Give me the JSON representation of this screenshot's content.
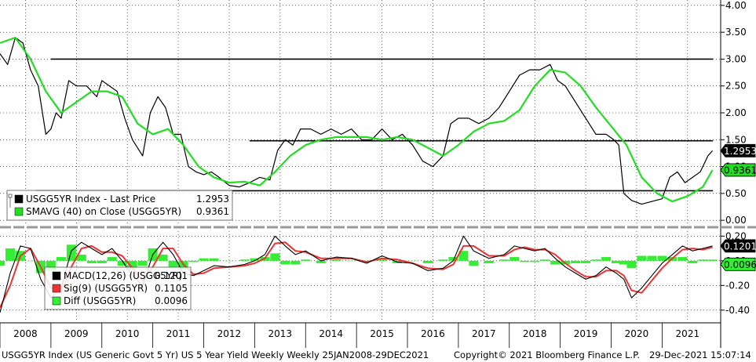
{
  "colors": {
    "price": "#000000",
    "sma": "#22dd22",
    "macd": "#000000",
    "signal": "#ee3333",
    "diff": "#33ee33",
    "hline": "#000000",
    "grid": "#000000",
    "separator": "#999999"
  },
  "footer": {
    "left": "USGG5YR Index (US Generic Govt 5 Yr) US 5 Year Yield Weekly  Weekly 25JAN2008-29DEC2021",
    "center": "Copyright© 2021 Bloomberg Finance L.P.",
    "right": "29-Dec-2021 15:07:14"
  },
  "chart_data": [
    {
      "type": "line",
      "title": "",
      "x_labels": [
        "2008",
        "2009",
        "2010",
        "2011",
        "2012",
        "2013",
        "2014",
        "2015",
        "2016",
        "2017",
        "2018",
        "2019",
        "2020",
        "2021"
      ],
      "y_ticks": [
        "4.00",
        "3.50",
        "3.00",
        "2.50",
        "2.00",
        "1.50",
        "1.00",
        "0.50",
        "0.00"
      ],
      "ylim": [
        -0.1,
        4.1
      ],
      "grid": "dotted",
      "legend_position": "bottom-left",
      "legend": [
        {
          "icon": "black",
          "label": "USGG5YR Index - Last Price",
          "value": "1.2953"
        },
        {
          "icon": "green",
          "label": "SMAVG (40)  on Close (USGG5YR)",
          "value": "0.9361"
        }
      ],
      "last_value_tags": [
        {
          "series": "price",
          "value": "1.2953"
        },
        {
          "series": "sma",
          "value": "0.9361"
        }
      ],
      "horizontal_lines": [
        {
          "y": 3.0,
          "from": 2009.0,
          "to": 2022.0
        },
        {
          "y": 1.48,
          "from": 2012.9,
          "to": 2022.0
        },
        {
          "y": 0.55,
          "from": 2008.7,
          "to": 2022.0
        }
      ],
      "series": [
        {
          "name": "USGG5YR Index - Last Price",
          "x": [
            2008.0,
            2008.15,
            2008.3,
            2008.45,
            2008.6,
            2008.75,
            2008.9,
            2009.0,
            2009.1,
            2009.2,
            2009.35,
            2009.5,
            2009.7,
            2009.9,
            2010.0,
            2010.15,
            2010.3,
            2010.45,
            2010.6,
            2010.8,
            2010.95,
            2011.1,
            2011.25,
            2011.4,
            2011.55,
            2011.7,
            2011.85,
            2012.0,
            2012.15,
            2012.3,
            2012.5,
            2012.7,
            2012.9,
            2013.1,
            2013.3,
            2013.45,
            2013.6,
            2013.75,
            2013.9,
            2014.1,
            2014.3,
            2014.5,
            2014.7,
            2014.9,
            2015.1,
            2015.3,
            2015.5,
            2015.7,
            2015.9,
            2016.1,
            2016.3,
            2016.5,
            2016.7,
            2016.85,
            2017.0,
            2017.2,
            2017.4,
            2017.6,
            2017.8,
            2018.0,
            2018.2,
            2018.4,
            2018.6,
            2018.8,
            2018.95,
            2019.1,
            2019.3,
            2019.5,
            2019.7,
            2019.9,
            2020.05,
            2020.15,
            2020.25,
            2020.4,
            2020.6,
            2020.8,
            2021.0,
            2021.15,
            2021.3,
            2021.45,
            2021.6,
            2021.75,
            2021.9,
            2021.99
          ],
          "values": [
            3.1,
            2.9,
            3.4,
            3.3,
            2.8,
            2.5,
            1.6,
            1.7,
            2.0,
            1.9,
            2.6,
            2.5,
            2.5,
            2.3,
            2.6,
            2.5,
            2.4,
            1.9,
            1.5,
            1.2,
            2.0,
            2.3,
            2.1,
            1.6,
            1.6,
            1.0,
            0.9,
            0.85,
            0.9,
            0.8,
            0.65,
            0.62,
            0.7,
            0.8,
            0.75,
            1.3,
            1.5,
            1.4,
            1.7,
            1.7,
            1.6,
            1.7,
            1.6,
            1.7,
            1.5,
            1.5,
            1.7,
            1.5,
            1.6,
            1.4,
            1.1,
            1.0,
            1.2,
            1.8,
            1.9,
            1.9,
            1.8,
            1.9,
            2.1,
            2.4,
            2.7,
            2.8,
            2.8,
            2.9,
            2.6,
            2.5,
            2.2,
            1.9,
            1.6,
            1.6,
            1.5,
            1.4,
            0.5,
            0.37,
            0.3,
            0.35,
            0.4,
            0.8,
            0.9,
            0.7,
            0.8,
            0.9,
            1.2,
            1.2953
          ]
        },
        {
          "name": "SMAVG (40)  on Close (USGG5YR)",
          "x": [
            2008.0,
            2008.3,
            2008.6,
            2008.9,
            2009.2,
            2009.5,
            2009.8,
            2010.1,
            2010.4,
            2010.7,
            2011.0,
            2011.3,
            2011.6,
            2011.9,
            2012.2,
            2012.5,
            2012.8,
            2013.1,
            2013.4,
            2013.7,
            2014.0,
            2014.3,
            2014.6,
            2014.9,
            2015.2,
            2015.5,
            2015.8,
            2016.1,
            2016.4,
            2016.7,
            2017.0,
            2017.3,
            2017.6,
            2017.9,
            2018.2,
            2018.5,
            2018.8,
            2019.1,
            2019.4,
            2019.7,
            2020.0,
            2020.3,
            2020.6,
            2020.9,
            2021.2,
            2021.5,
            2021.8,
            2021.99
          ],
          "values": [
            3.3,
            3.4,
            3.0,
            2.4,
            2.0,
            2.2,
            2.4,
            2.4,
            2.3,
            1.8,
            1.6,
            1.7,
            1.4,
            1.0,
            0.8,
            0.7,
            0.72,
            0.65,
            0.9,
            1.2,
            1.4,
            1.5,
            1.55,
            1.55,
            1.55,
            1.5,
            1.55,
            1.5,
            1.35,
            1.2,
            1.4,
            1.65,
            1.8,
            1.85,
            2.05,
            2.5,
            2.8,
            2.75,
            2.5,
            2.1,
            1.75,
            1.4,
            0.8,
            0.5,
            0.35,
            0.45,
            0.62,
            0.9361
          ]
        }
      ]
    },
    {
      "type": "line",
      "title": "",
      "y_ticks": [
        "0.20",
        "0.00",
        "-0.20",
        "-0.40"
      ],
      "ylim": [
        -0.49,
        0.24
      ],
      "grid": "dotted",
      "legend_position": "bottom-left",
      "legend": [
        {
          "icon": "black",
          "label": "MACD(12,26)  (USGG5YR)",
          "value": "0.1201"
        },
        {
          "icon": "red",
          "label": "Sig(9)  (USGG5YR)",
          "value": "0.1105"
        },
        {
          "icon": "green",
          "label": "Diff  (USGG5YR)",
          "value": "0.0096"
        }
      ],
      "last_value_tags": [
        {
          "series": "macd",
          "value": "0.1201"
        },
        {
          "series": "diff",
          "value": "0.0096"
        }
      ],
      "series": [
        {
          "name": "MACD(12,26)  (USGG5YR)",
          "x": [
            2008.0,
            2008.2,
            2008.4,
            2008.6,
            2008.8,
            2009.0,
            2009.2,
            2009.4,
            2009.6,
            2009.8,
            2010.0,
            2010.2,
            2010.4,
            2010.6,
            2010.8,
            2011.0,
            2011.2,
            2011.4,
            2011.6,
            2011.8,
            2012.0,
            2012.2,
            2012.5,
            2012.8,
            2013.0,
            2013.2,
            2013.4,
            2013.6,
            2013.8,
            2014.0,
            2014.3,
            2014.6,
            2014.9,
            2015.2,
            2015.5,
            2015.8,
            2016.1,
            2016.4,
            2016.7,
            2016.9,
            2017.1,
            2017.3,
            2017.6,
            2017.9,
            2018.1,
            2018.3,
            2018.5,
            2018.7,
            2018.9,
            2019.1,
            2019.3,
            2019.5,
            2019.7,
            2019.9,
            2020.1,
            2020.25,
            2020.4,
            2020.6,
            2020.8,
            2021.0,
            2021.2,
            2021.4,
            2021.6,
            2021.8,
            2021.99
          ],
          "values": [
            -0.42,
            -0.1,
            0.12,
            0.1,
            -0.15,
            -0.3,
            -0.22,
            0.08,
            0.15,
            0.1,
            0.05,
            0.1,
            0.0,
            -0.12,
            -0.2,
            0.05,
            0.15,
            0.05,
            -0.1,
            -0.12,
            -0.08,
            -0.04,
            -0.05,
            -0.03,
            0.0,
            0.05,
            0.2,
            0.12,
            0.05,
            0.08,
            0.0,
            0.03,
            0.02,
            -0.02,
            0.04,
            -0.01,
            -0.02,
            -0.08,
            -0.06,
            0.0,
            0.2,
            0.08,
            0.02,
            0.05,
            0.12,
            0.1,
            0.08,
            0.1,
            0.02,
            -0.05,
            -0.1,
            -0.15,
            -0.12,
            -0.05,
            -0.1,
            -0.15,
            -0.3,
            -0.22,
            -0.12,
            -0.02,
            0.05,
            0.12,
            0.08,
            0.1,
            0.1201
          ]
        },
        {
          "name": "Sig(9)  (USGG5YR)",
          "x": [
            2008.0,
            2008.2,
            2008.4,
            2008.6,
            2008.8,
            2009.0,
            2009.2,
            2009.4,
            2009.6,
            2009.8,
            2010.0,
            2010.2,
            2010.4,
            2010.6,
            2010.8,
            2011.0,
            2011.2,
            2011.4,
            2011.6,
            2011.8,
            2012.0,
            2012.2,
            2012.5,
            2012.8,
            2013.0,
            2013.2,
            2013.4,
            2013.6,
            2013.8,
            2014.0,
            2014.3,
            2014.6,
            2014.9,
            2015.2,
            2015.5,
            2015.8,
            2016.1,
            2016.4,
            2016.7,
            2016.9,
            2017.1,
            2017.3,
            2017.6,
            2017.9,
            2018.1,
            2018.3,
            2018.5,
            2018.7,
            2018.9,
            2019.1,
            2019.3,
            2019.5,
            2019.7,
            2019.9,
            2020.1,
            2020.25,
            2020.4,
            2020.6,
            2020.8,
            2021.0,
            2021.2,
            2021.4,
            2021.6,
            2021.8,
            2021.99
          ],
          "values": [
            -0.38,
            -0.2,
            0.04,
            0.1,
            -0.05,
            -0.22,
            -0.25,
            -0.05,
            0.1,
            0.12,
            0.07,
            0.07,
            0.04,
            -0.06,
            -0.16,
            -0.05,
            0.1,
            0.1,
            -0.03,
            -0.11,
            -0.1,
            -0.06,
            -0.05,
            -0.04,
            -0.02,
            0.02,
            0.14,
            0.15,
            0.08,
            0.07,
            0.02,
            0.02,
            0.02,
            -0.01,
            0.02,
            0.01,
            -0.02,
            -0.06,
            -0.07,
            -0.03,
            0.12,
            0.12,
            0.04,
            0.04,
            0.09,
            0.11,
            0.09,
            0.09,
            0.05,
            -0.02,
            -0.08,
            -0.13,
            -0.13,
            -0.08,
            -0.08,
            -0.12,
            -0.24,
            -0.26,
            -0.16,
            -0.06,
            0.02,
            0.09,
            0.1,
            0.09,
            0.1105
          ]
        }
      ],
      "diff": {
        "x": [
          2008.0,
          2008.2,
          2008.4,
          2008.6,
          2008.8,
          2009.0,
          2009.2,
          2009.4,
          2009.6,
          2009.8,
          2010.0,
          2010.2,
          2010.4,
          2010.6,
          2010.8,
          2011.0,
          2011.2,
          2011.4,
          2011.6,
          2011.8,
          2012.0,
          2012.2,
          2012.5,
          2012.8,
          2013.0,
          2013.2,
          2013.4,
          2013.6,
          2013.8,
          2014.0,
          2014.3,
          2014.6,
          2014.9,
          2015.2,
          2015.5,
          2015.8,
          2016.1,
          2016.4,
          2016.7,
          2016.9,
          2017.1,
          2017.3,
          2017.6,
          2017.9,
          2018.1,
          2018.3,
          2018.5,
          2018.7,
          2018.9,
          2019.1,
          2019.3,
          2019.5,
          2019.7,
          2019.9,
          2020.1,
          2020.25,
          2020.4,
          2020.6,
          2020.8,
          2021.0,
          2021.2,
          2021.4,
          2021.6,
          2021.8,
          2021.99
        ],
        "values": [
          -0.04,
          0.1,
          0.08,
          0.0,
          -0.1,
          -0.08,
          0.03,
          0.13,
          0.05,
          -0.02,
          -0.02,
          0.03,
          -0.04,
          -0.06,
          -0.04,
          0.1,
          0.05,
          -0.05,
          -0.07,
          -0.01,
          0.02,
          0.02,
          0.0,
          0.01,
          0.02,
          0.03,
          0.06,
          -0.03,
          -0.03,
          0.01,
          -0.02,
          0.01,
          0.0,
          -0.01,
          0.02,
          -0.02,
          0.0,
          -0.02,
          0.01,
          0.03,
          0.08,
          -0.04,
          -0.02,
          0.01,
          0.03,
          -0.01,
          -0.01,
          0.01,
          -0.03,
          -0.03,
          -0.02,
          -0.02,
          0.01,
          0.03,
          -0.02,
          -0.03,
          -0.06,
          0.04,
          0.04,
          0.04,
          0.03,
          0.03,
          -0.02,
          0.01,
          0.0096
        ]
      }
    }
  ]
}
